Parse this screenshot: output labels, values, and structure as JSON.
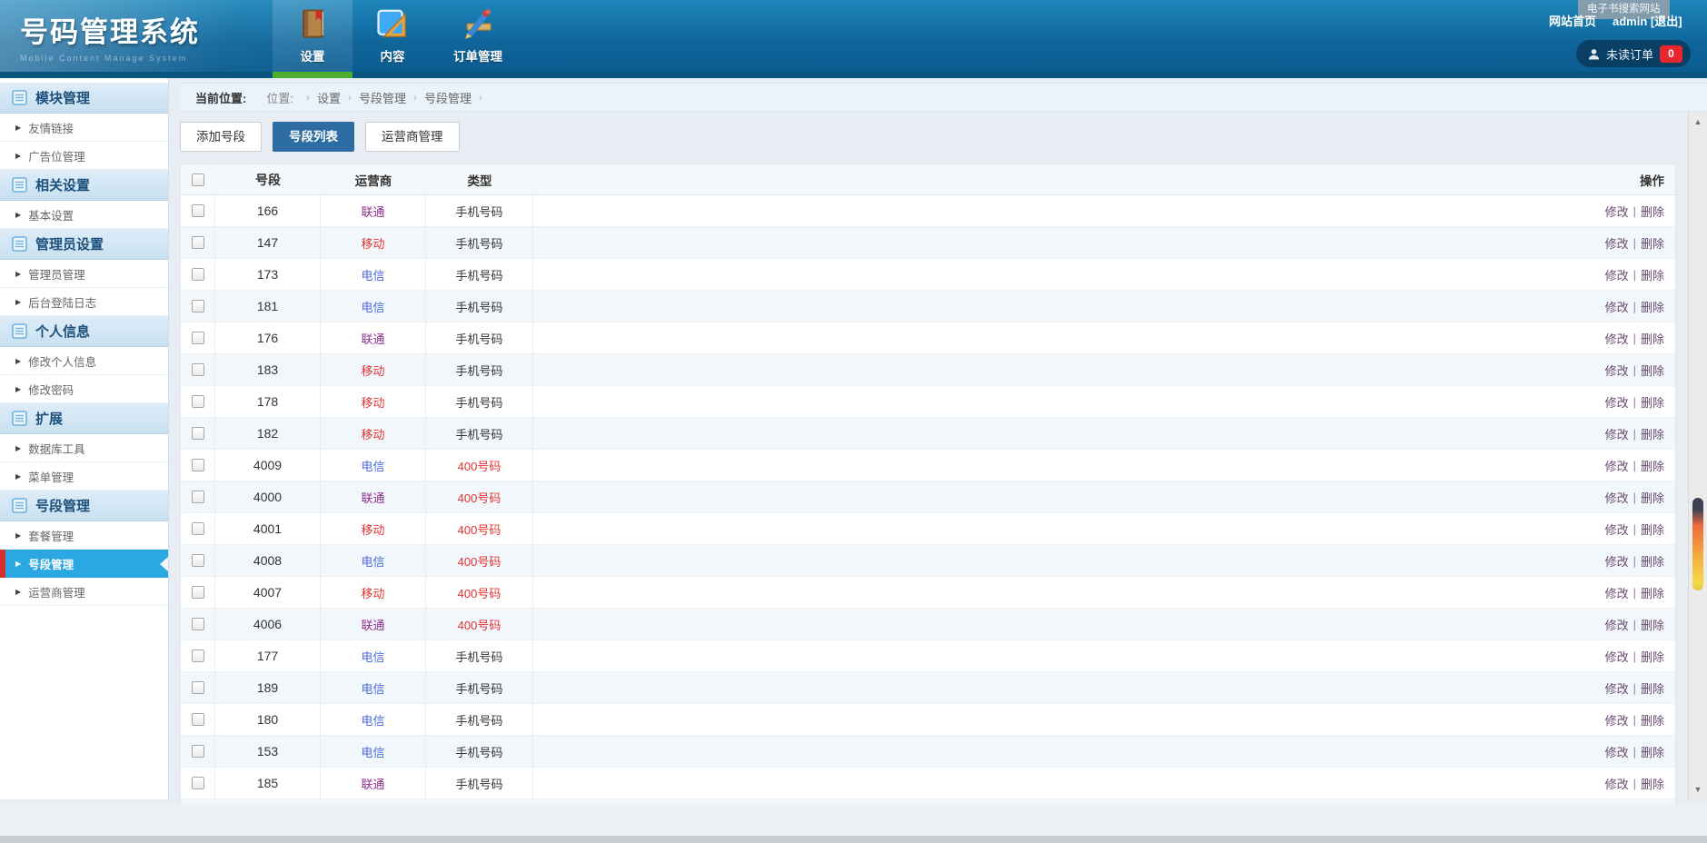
{
  "app": {
    "title": "号码管理系统",
    "subtitle": "Mobile Content Manage System"
  },
  "header": {
    "tabs": [
      {
        "label": "设置",
        "icon": "book-icon",
        "active": true
      },
      {
        "label": "内容",
        "icon": "ruler-icon",
        "active": false
      },
      {
        "label": "订单管理",
        "icon": "pencil-icon",
        "active": false,
        "wide": true
      }
    ],
    "tooltip": "电子书搜索网站",
    "home_link": "网站首页",
    "user_link": "admin [退出]",
    "unread_label": "未读订单",
    "unread_count": "0"
  },
  "sidebar": {
    "sections": [
      {
        "title": "模块管理",
        "items": [
          {
            "label": "友情链接"
          },
          {
            "label": "广告位管理"
          }
        ]
      },
      {
        "title": "相关设置",
        "items": [
          {
            "label": "基本设置"
          }
        ]
      },
      {
        "title": "管理员设置",
        "items": [
          {
            "label": "管理员管理"
          },
          {
            "label": "后台登陆日志"
          }
        ]
      },
      {
        "title": "个人信息",
        "items": [
          {
            "label": "修改个人信息"
          },
          {
            "label": "修改密码"
          }
        ]
      },
      {
        "title": "扩展",
        "items": [
          {
            "label": "数据库工具"
          },
          {
            "label": "菜单管理"
          }
        ]
      },
      {
        "title": "号段管理",
        "items": [
          {
            "label": "套餐管理"
          },
          {
            "label": "号段管理",
            "active": true
          },
          {
            "label": "运营商管理"
          }
        ]
      }
    ]
  },
  "breadcrumb": {
    "label": "当前位置:",
    "prefix": "位置:",
    "separator": "›",
    "path": [
      "设置",
      "号段管理",
      "号段管理"
    ]
  },
  "toolbar": {
    "buttons": [
      {
        "label": "添加号段",
        "active": false
      },
      {
        "label": "号段列表",
        "active": true
      },
      {
        "label": "运营商管理",
        "active": false
      }
    ]
  },
  "table": {
    "headers": {
      "segment": "号段",
      "operator": "运营商",
      "type": "类型",
      "ops": "操作"
    },
    "ops": {
      "edit": "修改",
      "sep": "|",
      "delete": "删除"
    },
    "rows": [
      {
        "segment": "166",
        "operator": "联通",
        "type": "手机号码"
      },
      {
        "segment": "147",
        "operator": "移动",
        "type": "手机号码"
      },
      {
        "segment": "173",
        "operator": "电信",
        "type": "手机号码"
      },
      {
        "segment": "181",
        "operator": "电信",
        "type": "手机号码"
      },
      {
        "segment": "176",
        "operator": "联通",
        "type": "手机号码"
      },
      {
        "segment": "183",
        "operator": "移动",
        "type": "手机号码"
      },
      {
        "segment": "178",
        "operator": "移动",
        "type": "手机号码"
      },
      {
        "segment": "182",
        "operator": "移动",
        "type": "手机号码"
      },
      {
        "segment": "4009",
        "operator": "电信",
        "type": "400号码"
      },
      {
        "segment": "4000",
        "operator": "联通",
        "type": "400号码"
      },
      {
        "segment": "4001",
        "operator": "移动",
        "type": "400号码"
      },
      {
        "segment": "4008",
        "operator": "电信",
        "type": "400号码"
      },
      {
        "segment": "4007",
        "operator": "移动",
        "type": "400号码"
      },
      {
        "segment": "4006",
        "operator": "联通",
        "type": "400号码"
      },
      {
        "segment": "177",
        "operator": "电信",
        "type": "手机号码"
      },
      {
        "segment": "189",
        "operator": "电信",
        "type": "手机号码"
      },
      {
        "segment": "180",
        "operator": "电信",
        "type": "手机号码"
      },
      {
        "segment": "153",
        "operator": "电信",
        "type": "手机号码"
      },
      {
        "segment": "185",
        "operator": "联通",
        "type": "手机号码"
      }
    ]
  },
  "colors": {
    "operators": {
      "联通": "#8c2e8c",
      "移动": "#e23333",
      "电信": "#4a6be0"
    },
    "types": {
      "手机号码": "#333333",
      "400号码": "#e23333"
    },
    "accent_green": "#4fae2e",
    "active_sidebar_blue": "#2ba7e1",
    "active_button_blue": "#2d6da4",
    "badge_red": "#e8262d"
  }
}
